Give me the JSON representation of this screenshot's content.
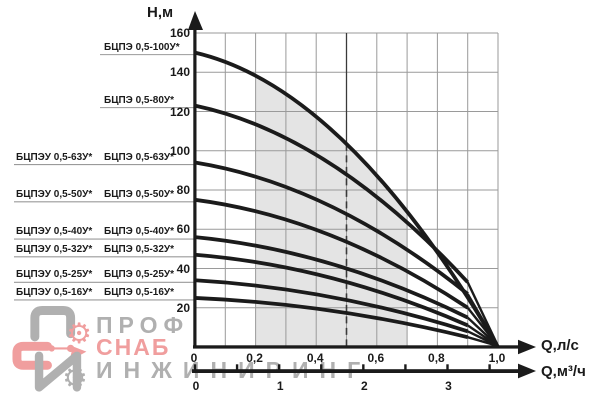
{
  "chart_data": {
    "type": "line",
    "title": "",
    "ylabel": "Н,м",
    "xlabel_primary": "Q,л/с",
    "xlabel_secondary": "Q,м³/ч",
    "y_axis": {
      "min": 0,
      "max": 160,
      "grid_step": 20,
      "tick_values": [
        160,
        140,
        120,
        100,
        80,
        60,
        40,
        20
      ],
      "tick_labels": [
        "160",
        "140",
        "120",
        "100",
        "80",
        "60",
        "40",
        "20"
      ]
    },
    "x_axis_lps": {
      "min": 0,
      "max": 1.0,
      "grid_step": 0.1,
      "tick_values": [
        0,
        0.2,
        0.4,
        0.6,
        0.8,
        1.0
      ],
      "tick_labels": [
        "0",
        "0,2",
        "0,4",
        "0,6",
        "0,8",
        "1,0"
      ]
    },
    "x_axis_m3h": {
      "min": 0,
      "max": 3.5,
      "minor_tick_step": 0.5,
      "tick_values": [
        0,
        1,
        2,
        3
      ],
      "tick_labels": [
        "0",
        "1",
        "2",
        "3"
      ],
      "lps_per_m3h": 0.27778
    },
    "series": [
      {
        "label": "БЦПЭ 0,5-100У*",
        "label_secondary": null,
        "shutoff_head_m": 150,
        "head_at_q09_m": null,
        "curve_end_lps_m": [
          1.0,
          0
        ]
      },
      {
        "label": "БЦПЭ 0,5-80У*",
        "label_secondary": null,
        "shutoff_head_m": 123,
        "head_at_q09_m": 33,
        "curve_end_lps_m": [
          1.0,
          0
        ]
      },
      {
        "label": "БЦПЭ 0,5-63У*",
        "label_secondary": "БЦПЭУ 0,5-63У*",
        "shutoff_head_m": 94,
        "head_at_q09_m": 27,
        "curve_end_lps_m": [
          1.0,
          0
        ]
      },
      {
        "label": "БЦПЭ 0,5-50У*",
        "label_secondary": "БЦПЭУ 0,5-50У*",
        "shutoff_head_m": 75,
        "head_at_q09_m": 20,
        "curve_end_lps_m": [
          1.0,
          0
        ]
      },
      {
        "label": "БЦПЭ 0,5-40У*",
        "label_secondary": "БЦПЭУ 0,5-40У*",
        "shutoff_head_m": 56,
        "head_at_q09_m": 15,
        "curve_end_lps_m": [
          1.0,
          0
        ]
      },
      {
        "label": "БЦПЭ 0,5-32У*",
        "label_secondary": "БЦПЭУ 0,5-32У*",
        "shutoff_head_m": 47,
        "head_at_q09_m": 11,
        "curve_end_lps_m": [
          1.0,
          0
        ]
      },
      {
        "label": "БЦПЭ 0,5-25У*",
        "label_secondary": "БЦПЭУ 0,5-25У*",
        "shutoff_head_m": 34,
        "head_at_q09_m": 8,
        "curve_end_lps_m": [
          1.0,
          0
        ]
      },
      {
        "label": "БЦПЭ 0,5-16У*",
        "label_secondary": "БЦПЭУ 0,5-16У*",
        "shutoff_head_m": 25,
        "head_at_q09_m": 5,
        "curve_end_lps_m": [
          1.0,
          0
        ]
      }
    ],
    "shaded_operating_range_lps": [
      0.2,
      0.7
    ],
    "nominal_flow_marker_lps": 0.5,
    "legend_position": "left",
    "grid": true
  },
  "watermark": {
    "line1": "ПРОФ",
    "line2": "СНАБ",
    "line3": "ИНЖИНИРИНГ"
  },
  "colors": {
    "curve": "#1b1b1b",
    "grid": "#9a9a9a",
    "shade": "#e4e4e4",
    "axis": "#1b1b1b",
    "leader": "#9a9a9a",
    "marker": "#3a3a3a",
    "watermark_gray": "#b0b0b0",
    "watermark_pink": "#f09e9e"
  }
}
